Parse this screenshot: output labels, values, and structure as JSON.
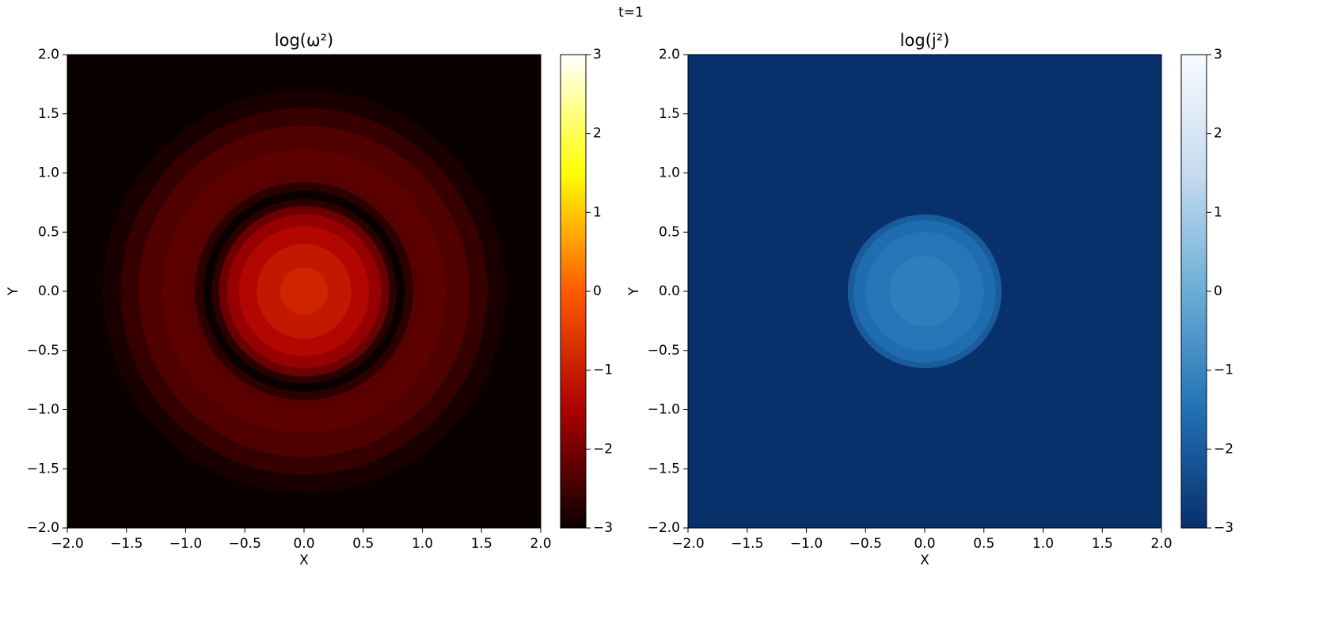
{
  "figure_title": "t=1",
  "chart_data": [
    {
      "type": "heatmap",
      "title": "log(ω²)",
      "x_label": "X",
      "y_label": "Y",
      "r": [
        0,
        0.2,
        0.4,
        0.55,
        0.65,
        0.72,
        0.78,
        0.85,
        0.92,
        1.0,
        1.2,
        1.4,
        1.55,
        1.7,
        1.85,
        2.9
      ],
      "values": [
        -0.85,
        -0.9,
        -1.1,
        -1.4,
        -1.7,
        -2.1,
        -2.7,
        -3,
        -2.7,
        -2.3,
        -2.25,
        -2.35,
        -2.6,
        -2.85,
        -3,
        -3
      ],
      "colormap": [
        "#0b0000",
        "#ad0000",
        "#ff5a00",
        "#ffff04",
        "#ffffff"
      ],
      "xlim": [
        -2,
        2
      ],
      "ylim": [
        -2,
        2
      ],
      "clim": [
        -3,
        3
      ],
      "xticks": [
        {
          "value": -2,
          "label": "−2.0"
        },
        {
          "value": -1.5,
          "label": "−1.5"
        },
        {
          "value": -1,
          "label": "−1.0"
        },
        {
          "value": -0.5,
          "label": "−0.5"
        },
        {
          "value": 0,
          "label": "0.0"
        },
        {
          "value": 0.5,
          "label": "0.5"
        },
        {
          "value": 1,
          "label": "1.0"
        },
        {
          "value": 1.5,
          "label": "1.5"
        },
        {
          "value": 2,
          "label": "2.0"
        }
      ],
      "yticks": [
        {
          "value": -2,
          "label": "−2.0"
        },
        {
          "value": -1.5,
          "label": "−1.5"
        },
        {
          "value": -1,
          "label": "−1.0"
        },
        {
          "value": -0.5,
          "label": "−0.5"
        },
        {
          "value": 0,
          "label": "0.0"
        },
        {
          "value": 0.5,
          "label": "0.5"
        },
        {
          "value": 1,
          "label": "1.0"
        },
        {
          "value": 1.5,
          "label": "1.5"
        },
        {
          "value": 2,
          "label": "2.0"
        }
      ],
      "cticks": [
        {
          "value": -3,
          "label": "−3"
        },
        {
          "value": -2,
          "label": "−2"
        },
        {
          "value": -1,
          "label": "−1"
        },
        0,
        1,
        2,
        3
      ]
    },
    {
      "type": "heatmap",
      "title": "log(j²)",
      "x_label": "X",
      "y_label": "Y",
      "r": [
        0,
        0.3,
        0.5,
        0.6,
        0.65,
        0.7,
        2.9
      ],
      "values": [
        -1.1,
        -1.2,
        -1.4,
        -1.6,
        -2.0,
        -3,
        -3
      ],
      "colormap": [
        "#08306b",
        "#2171b5",
        "#6baed6",
        "#c6dbef",
        "#f7fbff"
      ],
      "xlim": [
        -2,
        2
      ],
      "ylim": [
        -2,
        2
      ],
      "clim": [
        -3,
        3
      ],
      "xticks": [
        {
          "value": -2,
          "label": "−2.0"
        },
        {
          "value": -1.5,
          "label": "−1.5"
        },
        {
          "value": -1,
          "label": "−1.0"
        },
        {
          "value": -0.5,
          "label": "−0.5"
        },
        {
          "value": 0,
          "label": "0.0"
        },
        {
          "value": 0.5,
          "label": "0.5"
        },
        {
          "value": 1,
          "label": "1.0"
        },
        {
          "value": 1.5,
          "label": "1.5"
        },
        {
          "value": 2,
          "label": "2.0"
        }
      ],
      "yticks": [
        {
          "value": -2,
          "label": "−2.0"
        },
        {
          "value": -1.5,
          "label": "−1.5"
        },
        {
          "value": -1,
          "label": "−1.0"
        },
        {
          "value": -0.5,
          "label": "−0.5"
        },
        {
          "value": 0,
          "label": "0.0"
        },
        {
          "value": 0.5,
          "label": "0.5"
        },
        {
          "value": 1,
          "label": "1.0"
        },
        {
          "value": 1.5,
          "label": "1.5"
        },
        {
          "value": 2,
          "label": "2.0"
        }
      ],
      "cticks": [
        {
          "value": -3,
          "label": "−3"
        },
        {
          "value": -2,
          "label": "−2"
        },
        {
          "value": -1,
          "label": "−1"
        },
        0,
        1,
        2,
        3
      ]
    }
  ]
}
